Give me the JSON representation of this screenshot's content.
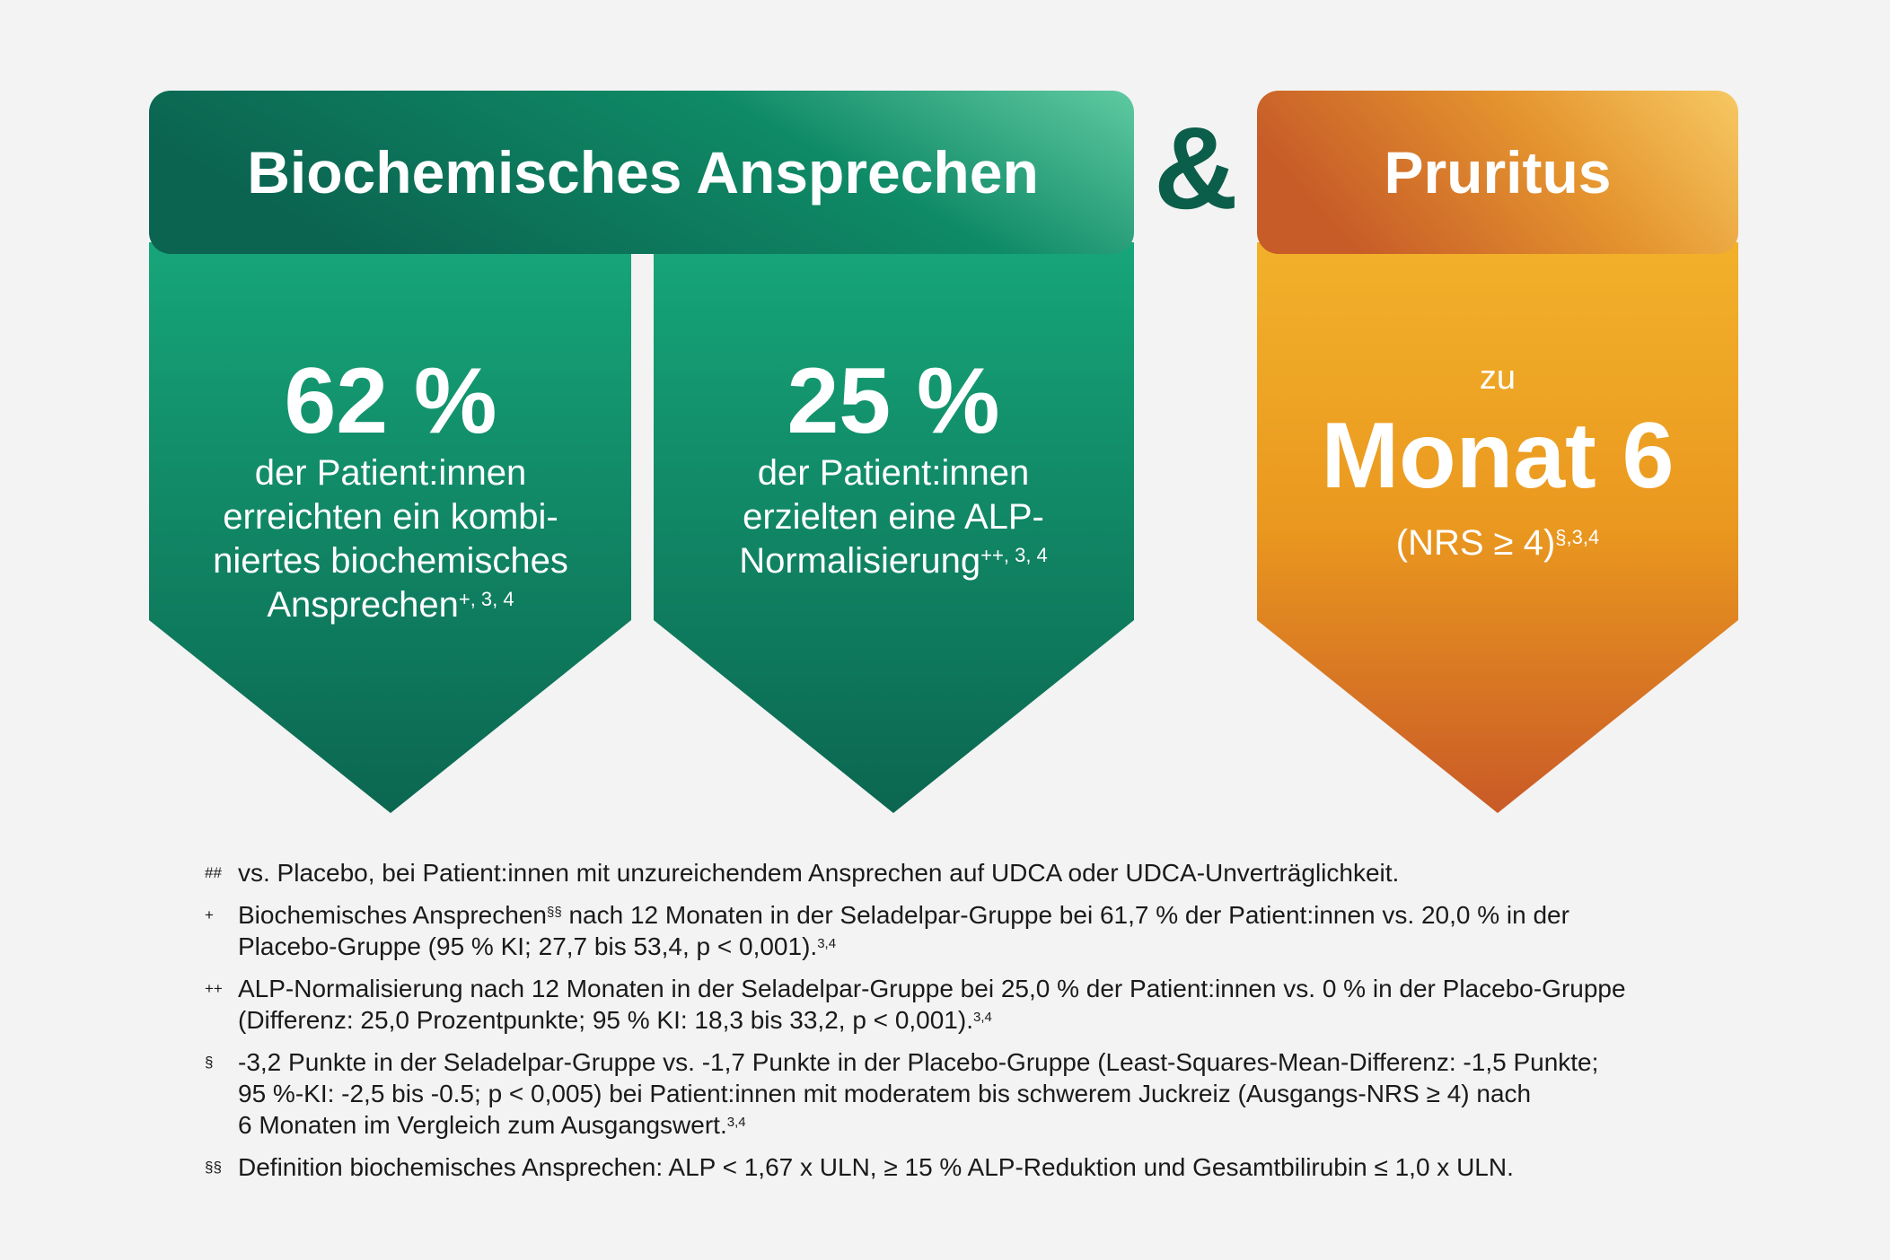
{
  "left_header": {
    "title": "Biochemisches Ansprechen"
  },
  "ampersand": "&",
  "right_header": {
    "title": "Pruritus"
  },
  "panels": [
    {
      "value": "62 %",
      "lines": [
        [
          {
            "t": "der Patient:innen"
          }
        ],
        [
          {
            "t": "erreichten ein kombi-"
          }
        ],
        [
          {
            "t": "niertes biochemisches"
          }
        ],
        [
          {
            "t": "Ansprechen"
          },
          {
            "s": "+, 3, 4"
          }
        ]
      ]
    },
    {
      "value": "25 %",
      "lines": [
        [
          {
            "t": "der Patient:innen"
          }
        ],
        [
          {
            "t": "erzielten eine ALP-"
          }
        ],
        [
          {
            "t": "Normalisierung"
          },
          {
            "s": "++, 3, 4"
          }
        ]
      ]
    }
  ],
  "pruritus_panel": {
    "prefix": "zu",
    "value": "Monat 6",
    "note": [
      {
        "t": "(NRS ≥ 4)"
      },
      {
        "s": "§,3,4"
      }
    ]
  },
  "footnotes": [
    {
      "marker": "##",
      "lines": [
        [
          {
            "t": "vs. Placebo, bei Patient:innen mit unzureichendem Ansprechen auf UDCA oder UDCA-Unverträglichkeit."
          }
        ]
      ]
    },
    {
      "marker": "+",
      "lines": [
        [
          {
            "t": "Biochemisches Ansprechen"
          },
          {
            "s": "§§"
          },
          {
            "t": " nach 12 Monaten in der Seladelpar-Gruppe bei 61,7 % der Patient:innen vs. 20,0 % in der"
          }
        ],
        [
          {
            "t": "Placebo-Gruppe (95 % KI; 27,7 bis 53,4, p < 0,001)."
          },
          {
            "s": "3,4"
          }
        ]
      ]
    },
    {
      "marker": "++",
      "lines": [
        [
          {
            "t": "ALP-Normalisierung nach 12 Monaten in der Seladelpar-Gruppe bei 25,0 % der Patient:innen vs. 0 % in der Placebo-Gruppe"
          }
        ],
        [
          {
            "t": "(Differenz: 25,0 Prozentpunkte; 95 % KI: 18,3 bis 33,2, p < 0,001)."
          },
          {
            "s": "3,4"
          }
        ]
      ]
    },
    {
      "marker": "§",
      "lines": [
        [
          {
            "t": "-3,2 Punkte in der Seladelpar-Gruppe vs. -1,7 Punkte in der Placebo-Gruppe (Least-Squares-Mean-Differenz: -1,5 Punkte;"
          }
        ],
        [
          {
            "t": "95 %-KI: -2,5 bis -0.5; p < 0,005) bei Patient:innen mit moderatem bis schwerem Juckreiz (Ausgangs-NRS ≥ 4) nach"
          }
        ],
        [
          {
            "t": "6 Monaten im Vergleich zum Ausgangswert."
          },
          {
            "s": "3,4"
          }
        ]
      ]
    },
    {
      "marker": "§§",
      "lines": [
        [
          {
            "t": "Definition biochemisches Ansprechen: ALP < 1,67 x ULN, ≥ 15 % ALP-Reduktion und Gesamtbilirubin ≤ 1,0 x ULN."
          }
        ]
      ]
    }
  ]
}
